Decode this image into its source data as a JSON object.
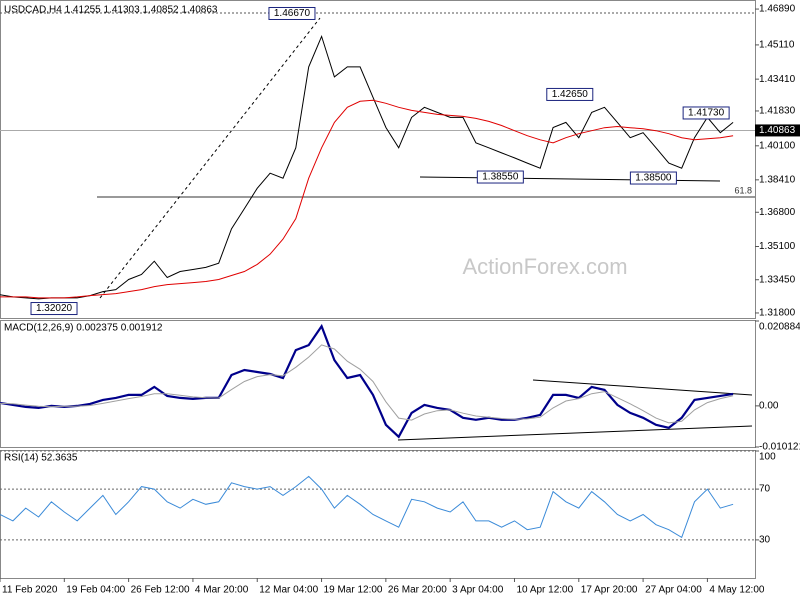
{
  "chart_data": [
    {
      "type": "line",
      "title": "USDCAD,H4  1.41255 1.41303 1.40852 1.40863",
      "watermark": "ActionForex.com",
      "fib_label": "61.8",
      "x": [
        0,
        2,
        4,
        6,
        8,
        10,
        12,
        14,
        16,
        18,
        20,
        22,
        24,
        26,
        28,
        30,
        32,
        34,
        36,
        38,
        40,
        42,
        44,
        46,
        48,
        50,
        52,
        54,
        56,
        58,
        60,
        62,
        64,
        66,
        68,
        70,
        72,
        74,
        76,
        78,
        80,
        82,
        84,
        86,
        88,
        90,
        92,
        94,
        96,
        98,
        100,
        102,
        104,
        106,
        108,
        110,
        112,
        114
      ],
      "xlim": [
        0,
        117.4
      ],
      "ylim": [
        1.3155,
        1.4729
      ],
      "yticks": [
        {
          "value": 1.4689,
          "label": "1.46890"
        },
        {
          "value": 1.4511,
          "label": "1.45110"
        },
        {
          "value": 1.4341,
          "label": "1.43410"
        },
        {
          "value": 1.4183,
          "label": "1.41830"
        },
        {
          "value": 1.401,
          "label": "1.40100"
        },
        {
          "value": 1.3841,
          "label": "1.38410"
        },
        {
          "value": 1.368,
          "label": "1.36800"
        },
        {
          "value": 1.351,
          "label": "1.35100"
        },
        {
          "value": 1.3345,
          "label": "1.33450"
        },
        {
          "value": 1.318,
          "label": "1.31800"
        }
      ],
      "grid": false,
      "current_price": {
        "value": 1.40863,
        "label": "1.40863"
      },
      "annotations": [
        {
          "x": 45.4,
          "value": 1.4667,
          "label": "1.46670"
        },
        {
          "x": 88.6,
          "value": 1.4265,
          "label": "1.42650"
        },
        {
          "x": 109.8,
          "value": 1.4173,
          "label": "1.41730"
        },
        {
          "x": 77.8,
          "value": 1.3855,
          "label": "1.38550"
        },
        {
          "x": 101.6,
          "value": 1.385,
          "label": "1.38500"
        },
        {
          "x": 8.4,
          "value": 1.3202,
          "label": "1.32020"
        }
      ],
      "series": [
        {
          "color": "#000000",
          "values": [
            1.327,
            1.326,
            1.3255,
            1.325,
            1.3255,
            1.3255,
            1.3255,
            1.3266,
            1.3286,
            1.3296,
            1.3346,
            1.3371,
            1.3437,
            1.3356,
            1.3386,
            1.3396,
            1.3406,
            1.3427,
            1.3598,
            1.3698,
            1.3799,
            1.3874,
            1.3849,
            1.4,
            1.4402,
            1.4553,
            1.4352,
            1.4402,
            1.4402,
            1.4251,
            1.4101,
            1.4,
            1.4151,
            1.4201,
            1.4176,
            1.4151,
            1.4151,
            1.4025,
            1.4,
            1.3975,
            1.395,
            1.3924,
            1.3899,
            1.4101,
            1.4126,
            1.405,
            1.4176,
            1.4201,
            1.4126,
            1.405,
            1.4075,
            1.4,
            1.3924,
            1.3899,
            1.405,
            1.4151,
            1.4075,
            1.4126
          ]
        },
        {
          "color": "#e00000",
          "values": [
            1.326,
            1.326,
            1.326,
            1.3255,
            1.3255,
            1.3255,
            1.326,
            1.3266,
            1.3271,
            1.3276,
            1.3286,
            1.3296,
            1.3311,
            1.3321,
            1.3326,
            1.3331,
            1.3336,
            1.3346,
            1.3366,
            1.3386,
            1.3421,
            1.3472,
            1.3547,
            1.3648,
            1.3849,
            1.4,
            1.4126,
            1.4201,
            1.4231,
            1.4236,
            1.4221,
            1.4201,
            1.4186,
            1.4176,
            1.4166,
            1.4161,
            1.4156,
            1.4146,
            1.4131,
            1.4111,
            1.4085,
            1.406,
            1.404,
            1.4025,
            1.405,
            1.407,
            1.4085,
            1.41,
            1.4106,
            1.41,
            1.4095,
            1.4085,
            1.407,
            1.405,
            1.404,
            1.4045,
            1.405,
            1.406
          ]
        }
      ]
    },
    {
      "type": "line",
      "title": "MACD(12,26,9) 0.002375 0.001912",
      "x": [
        0,
        2,
        4,
        6,
        8,
        10,
        12,
        14,
        16,
        18,
        20,
        22,
        24,
        26,
        28,
        30,
        32,
        34,
        36,
        38,
        40,
        42,
        44,
        46,
        48,
        50,
        52,
        54,
        56,
        58,
        60,
        62,
        64,
        66,
        68,
        70,
        72,
        74,
        76,
        78,
        80,
        82,
        84,
        86,
        88,
        90,
        92,
        94,
        96,
        98,
        100,
        102,
        104,
        106,
        108,
        110,
        112,
        114
      ],
      "xlim": [
        0,
        117.4
      ],
      "ylim": [
        -0.010121,
        0.020884
      ],
      "yticks": [
        0.020884,
        {
          "value": 0,
          "label": "0.00"
        },
        -0.010121
      ],
      "grid": false,
      "series": [
        {
          "color": "#00008b",
          "values": [
            0.00074,
            0.00025,
            -0.00025,
            -0.00049,
            0,
            -0.00025,
            0,
            0.00049,
            0.00147,
            0.00196,
            0.0027,
            0.0027,
            0.00466,
            0.00245,
            0.00196,
            0.00172,
            0.00196,
            0.00196,
            0.0076,
            0.00882,
            0.00833,
            0.00784,
            0.00686,
            0.01372,
            0.01495,
            0.0196,
            0.01127,
            0.00686,
            0.0076,
            0.0027,
            -0.00466,
            -0.0076,
            -0.00172,
            0.00025,
            -0.00049,
            -0.00098,
            -0.00294,
            -0.00343,
            -0.00294,
            -0.00343,
            -0.00343,
            -0.00294,
            -0.00221,
            0.0027,
            0.0027,
            0.00196,
            0.00466,
            0.00392,
            0.00025,
            -0.00172,
            -0.00294,
            -0.00466,
            -0.00539,
            -0.00294,
            0.00147,
            0.00196,
            0.00245,
            0.00294
          ]
        },
        {
          "color": "#a0a0a0",
          "values": [
            0.0006,
            0.0005,
            0.0002,
            -0.0001,
            -0.0002,
            -0.0001,
            -0.0001,
            0.0001,
            0.0006,
            0.0012,
            0.0018,
            0.0023,
            0.003,
            0.003,
            0.0026,
            0.0022,
            0.002,
            0.0019,
            0.004,
            0.006,
            0.0072,
            0.0077,
            0.0074,
            0.0095,
            0.012,
            0.015,
            0.014,
            0.011,
            0.009,
            0.006,
            0.001,
            -0.003,
            -0.0035,
            -0.002,
            -0.0012,
            -0.001,
            -0.0018,
            -0.0025,
            -0.0028,
            -0.0031,
            -0.0033,
            -0.0032,
            -0.0028,
            -0.0005,
            0.0012,
            0.0018,
            0.003,
            0.0035,
            0.002,
            0.0005,
            -0.0012,
            -0.003,
            -0.0042,
            -0.0038,
            -0.001,
            0.0008,
            0.0018,
            0.0025
          ]
        }
      ]
    },
    {
      "type": "line",
      "title": "RSI(14) 52.3635",
      "x": [
        0,
        2,
        4,
        6,
        8,
        10,
        12,
        14,
        16,
        18,
        20,
        22,
        24,
        26,
        28,
        30,
        32,
        34,
        36,
        38,
        40,
        42,
        44,
        46,
        48,
        50,
        52,
        54,
        56,
        58,
        60,
        62,
        64,
        66,
        68,
        70,
        72,
        74,
        76,
        78,
        80,
        82,
        84,
        86,
        88,
        90,
        92,
        94,
        96,
        98,
        100,
        102,
        104,
        106,
        108,
        110,
        112,
        114
      ],
      "xlim": [
        0,
        117.4
      ],
      "xticks": [
        {
          "value": 0,
          "label": "11 Feb 2020"
        },
        {
          "value": 10,
          "label": "19 Feb 04:00"
        },
        {
          "value": 20,
          "label": "26 Feb 12:00"
        },
        {
          "value": 30,
          "label": "4 Mar 20:00"
        },
        {
          "value": 40,
          "label": "12 Mar 04:00"
        },
        {
          "value": 50,
          "label": "19 Mar 12:00"
        },
        {
          "value": 60,
          "label": "26 Mar 20:00"
        },
        {
          "value": 70,
          "label": "3 Apr 04:00"
        },
        {
          "value": 80,
          "label": "10 Apr 12:00"
        },
        {
          "value": 90,
          "label": "17 Apr 20:00"
        },
        {
          "value": 100,
          "label": "27 Apr 04:00"
        },
        {
          "value": 110,
          "label": "4 May 12:00"
        }
      ],
      "ylim": [
        0,
        100
      ],
      "yticks": [
        100,
        70,
        30
      ],
      "grid": true,
      "series": [
        {
          "color": "#3a8ad8",
          "values": [
            50,
            45,
            55,
            48,
            60,
            52,
            45,
            55,
            65,
            50,
            60,
            72,
            70,
            60,
            55,
            62,
            58,
            60,
            75,
            72,
            70,
            72,
            65,
            72,
            80,
            70,
            55,
            65,
            58,
            50,
            45,
            40,
            62,
            60,
            55,
            52,
            60,
            45,
            45,
            40,
            45,
            38,
            40,
            68,
            60,
            55,
            68,
            60,
            50,
            45,
            50,
            42,
            38,
            32,
            60,
            70,
            55,
            58
          ]
        }
      ]
    }
  ]
}
